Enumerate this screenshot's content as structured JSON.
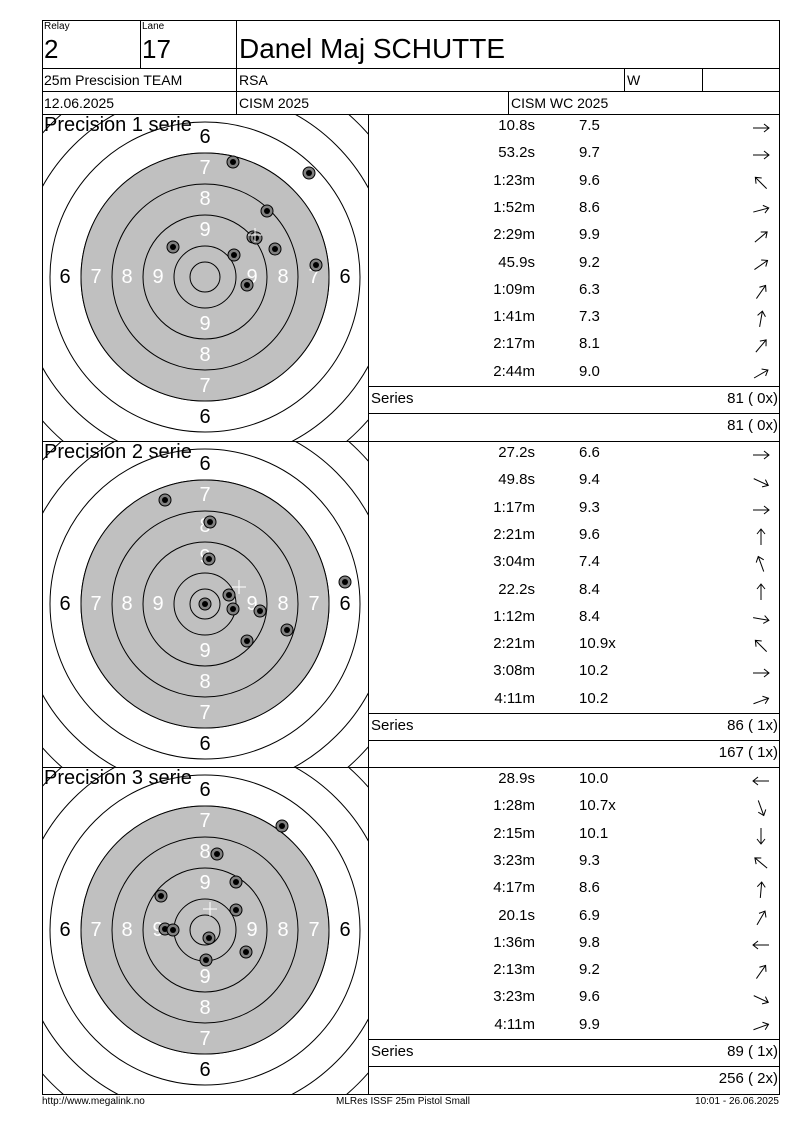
{
  "header": {
    "relay_label": "Relay",
    "relay": "2",
    "lane_label": "Lane",
    "lane": "17",
    "name": "Danel Maj SCHUTTE",
    "event": "25m Prescision TEAM",
    "nation": "RSA",
    "category": "W",
    "date": "12.06.2025",
    "competition": "CISM 2025",
    "match": "CISM WC 2025"
  },
  "series": [
    {
      "title": "Precision 1 serie",
      "shots": [
        {
          "time": "10.8s",
          "score": "7.5",
          "dir": 0
        },
        {
          "time": "53.2s",
          "score": "9.7",
          "dir": 0
        },
        {
          "time": "1:23m",
          "score": "9.6",
          "dir": -135
        },
        {
          "time": "1:52m",
          "score": "8.6",
          "dir": -15
        },
        {
          "time": "2:29m",
          "score": "9.9",
          "dir": -40
        },
        {
          "time": "45.9s",
          "score": "9.2",
          "dir": -35
        },
        {
          "time": "1:09m",
          "score": "6.3",
          "dir": -55
        },
        {
          "time": "1:41m",
          "score": "7.3",
          "dir": -80
        },
        {
          "time": "2:17m",
          "score": "8.1",
          "dir": -50
        },
        {
          "time": "2:44m",
          "score": "9.0",
          "dir": -30
        }
      ],
      "series_label": "Series",
      "series_total": "81 ( 0x)",
      "cumulative_total": "81 ( 0x)",
      "impacts": [
        [
          28,
          -115
        ],
        [
          104,
          -104
        ],
        [
          62,
          -66
        ],
        [
          48,
          -40
        ],
        [
          70,
          -28
        ],
        [
          29,
          -22
        ],
        [
          -32,
          -30
        ],
        [
          111,
          -12
        ],
        [
          42,
          8
        ],
        [
          51,
          -39
        ]
      ],
      "avg": [
        50,
        -42
      ]
    },
    {
      "title": "Precision 2 serie",
      "shots": [
        {
          "time": "27.2s",
          "score": "6.6",
          "dir": 0
        },
        {
          "time": "49.8s",
          "score": "9.4",
          "dir": 25
        },
        {
          "time": "1:17m",
          "score": "9.3",
          "dir": 0
        },
        {
          "time": "2:21m",
          "score": "9.6",
          "dir": -90
        },
        {
          "time": "3:04m",
          "score": "7.4",
          "dir": -110
        },
        {
          "time": "22.2s",
          "score": "8.4",
          "dir": -90
        },
        {
          "time": "1:12m",
          "score": "8.4",
          "dir": 10
        },
        {
          "time": "2:21m",
          "score": "10.9x",
          "dir": -135
        },
        {
          "time": "3:08m",
          "score": "10.2",
          "dir": 0
        },
        {
          "time": "4:11m",
          "score": "10.2",
          "dir": -20
        }
      ],
      "series_label": "Series",
      "series_total": "86 ( 1x)",
      "cumulative_total": "167 ( 1x)",
      "impacts": [
        [
          -40,
          -104
        ],
        [
          5,
          -82
        ],
        [
          4,
          -45
        ],
        [
          140,
          -22
        ],
        [
          24,
          -9
        ],
        [
          55,
          7
        ],
        [
          28,
          5
        ],
        [
          82,
          26
        ],
        [
          42,
          37
        ],
        [
          0,
          0
        ]
      ],
      "avg": [
        34,
        -17
      ]
    },
    {
      "title": "Precision 3 serie",
      "shots": [
        {
          "time": "28.9s",
          "score": "10.0",
          "dir": 180
        },
        {
          "time": "1:28m",
          "score": "10.7x",
          "dir": 70
        },
        {
          "time": "2:15m",
          "score": "10.1",
          "dir": 90
        },
        {
          "time": "3:23m",
          "score": "9.3",
          "dir": -140
        },
        {
          "time": "4:17m",
          "score": "8.6",
          "dir": -85
        },
        {
          "time": "20.1s",
          "score": "6.9",
          "dir": -60
        },
        {
          "time": "1:36m",
          "score": "9.8",
          "dir": 180
        },
        {
          "time": "2:13m",
          "score": "9.2",
          "dir": -55
        },
        {
          "time": "3:23m",
          "score": "9.6",
          "dir": 25
        },
        {
          "time": "4:11m",
          "score": "9.9",
          "dir": -20
        }
      ],
      "series_label": "Series",
      "series_total": "89 ( 1x)",
      "cumulative_total": "256 ( 2x)",
      "impacts": [
        [
          77,
          -104
        ],
        [
          12,
          -76
        ],
        [
          31,
          -48
        ],
        [
          -44,
          -34
        ],
        [
          31,
          -20
        ],
        [
          -40,
          -1
        ],
        [
          -32,
          0
        ],
        [
          4,
          8
        ],
        [
          1,
          30
        ],
        [
          41,
          22
        ]
      ],
      "avg": [
        5,
        -21
      ]
    }
  ],
  "footer": {
    "url": "http://www.megalink.no",
    "software": "MLRes ISSF 25m Pistol Small",
    "timestamp": "10:01 - 26.06.2025"
  },
  "colors": {
    "black_zone": "#c0c0c0",
    "ring_text_white": "#ffffff",
    "ring_text_black": "#000000",
    "line": "#000000"
  }
}
